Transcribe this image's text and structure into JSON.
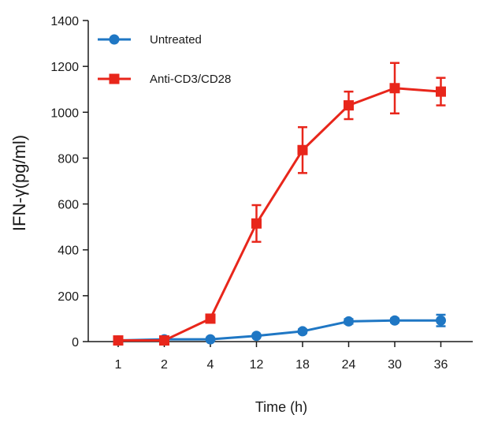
{
  "chart_data": {
    "type": "line",
    "title": "",
    "xlabel": "Time (h)",
    "ylabel": "IFN-γ(pg/ml)",
    "categories": [
      "1",
      "2",
      "4",
      "12",
      "18",
      "24",
      "30",
      "36"
    ],
    "ylim": [
      0,
      1400
    ],
    "yticks": [
      0,
      200,
      400,
      600,
      800,
      1000,
      1200,
      1400
    ],
    "x_scale": "categorical",
    "grid": false,
    "legend_position": "top-left",
    "series": [
      {
        "name": "Untreated",
        "color": "#1f77c4",
        "marker": "circle",
        "x_positions": [
          1,
          2,
          4,
          12,
          18,
          24,
          30,
          36
        ],
        "values": [
          5,
          10,
          10,
          25,
          45,
          88,
          92,
          92
        ],
        "errors": [
          3,
          5,
          5,
          5,
          8,
          10,
          8,
          25
        ]
      },
      {
        "name": "Anti-CD3/CD28",
        "color": "#e8261b",
        "marker": "square",
        "x_positions": [
          1,
          2,
          4,
          12,
          18,
          24,
          30,
          36
        ],
        "values": [
          5,
          5,
          100,
          515,
          835,
          1030,
          1105,
          1090
        ],
        "errors": [
          5,
          5,
          8,
          80,
          100,
          60,
          110,
          60
        ]
      }
    ]
  }
}
